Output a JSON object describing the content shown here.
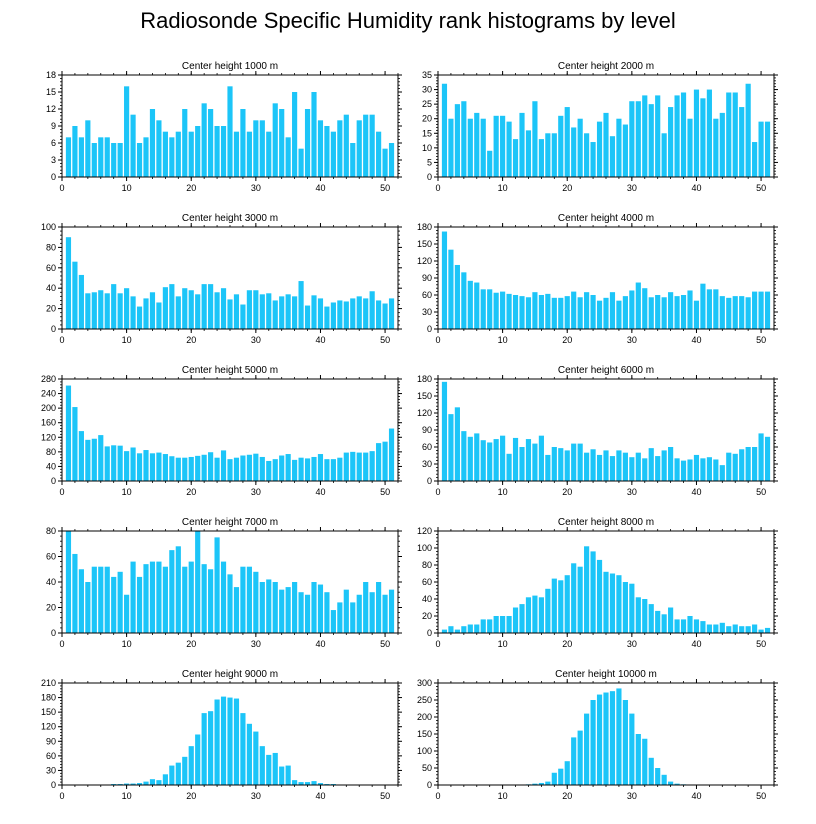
{
  "title": "Radiosonde Specific Humidity rank histograms by level",
  "colors": {
    "bar": "#1cc5f8",
    "axis": "#000000"
  },
  "chart_data": [
    {
      "type": "bar",
      "title": "Center height 1000 m",
      "xlim": [
        0,
        52
      ],
      "xticks": [
        0,
        10,
        20,
        30,
        40,
        50
      ],
      "ylim": [
        0,
        18
      ],
      "yticks": [
        0,
        3,
        6,
        9,
        12,
        15,
        18
      ],
      "x": [
        1,
        2,
        3,
        4,
        5,
        6,
        7,
        8,
        9,
        10,
        11,
        12,
        13,
        14,
        15,
        16,
        17,
        18,
        19,
        20,
        21,
        22,
        23,
        24,
        25,
        26,
        27,
        28,
        29,
        30,
        31,
        32,
        33,
        34,
        35,
        36,
        37,
        38,
        39,
        40,
        41,
        42,
        43,
        44,
        45,
        46,
        47,
        48,
        49,
        50,
        51
      ],
      "values": [
        7,
        9,
        7,
        10,
        6,
        7,
        7,
        6,
        6,
        16,
        11,
        6,
        7,
        12,
        10,
        8,
        7,
        8,
        12,
        8,
        9,
        13,
        12,
        9,
        9,
        16,
        8,
        12,
        8,
        10,
        10,
        8,
        13,
        12,
        7,
        15,
        5,
        12,
        15,
        10,
        9,
        8,
        10,
        11,
        6,
        10,
        11,
        11,
        8,
        5,
        6
      ]
    },
    {
      "type": "bar",
      "title": "Center height 2000 m",
      "xlim": [
        0,
        52
      ],
      "xticks": [
        0,
        10,
        20,
        30,
        40,
        50
      ],
      "ylim": [
        0,
        35
      ],
      "yticks": [
        0,
        5,
        10,
        15,
        20,
        25,
        30,
        35
      ],
      "x": [
        1,
        2,
        3,
        4,
        5,
        6,
        7,
        8,
        9,
        10,
        11,
        12,
        13,
        14,
        15,
        16,
        17,
        18,
        19,
        20,
        21,
        22,
        23,
        24,
        25,
        26,
        27,
        28,
        29,
        30,
        31,
        32,
        33,
        34,
        35,
        36,
        37,
        38,
        39,
        40,
        41,
        42,
        43,
        44,
        45,
        46,
        47,
        48,
        49,
        50,
        51
      ],
      "values": [
        32,
        20,
        25,
        26,
        20,
        22,
        20,
        9,
        21,
        21,
        19,
        13,
        22,
        16,
        26,
        13,
        15,
        15,
        21,
        24,
        17,
        20,
        15,
        12,
        19,
        22,
        14,
        20,
        18,
        26,
        26,
        28,
        25,
        28,
        15,
        24,
        28,
        29,
        20,
        30,
        27,
        30,
        20,
        22,
        29,
        29,
        24,
        32,
        12,
        19,
        19
      ]
    },
    {
      "type": "bar",
      "title": "Center height 3000 m",
      "xlim": [
        0,
        52
      ],
      "xticks": [
        0,
        10,
        20,
        30,
        40,
        50
      ],
      "ylim": [
        0,
        100
      ],
      "yticks": [
        0,
        20,
        40,
        60,
        80,
        100
      ],
      "x": [
        1,
        2,
        3,
        4,
        5,
        6,
        7,
        8,
        9,
        10,
        11,
        12,
        13,
        14,
        15,
        16,
        17,
        18,
        19,
        20,
        21,
        22,
        23,
        24,
        25,
        26,
        27,
        28,
        29,
        30,
        31,
        32,
        33,
        34,
        35,
        36,
        37,
        38,
        39,
        40,
        41,
        42,
        43,
        44,
        45,
        46,
        47,
        48,
        49,
        50,
        51
      ],
      "values": [
        90,
        66,
        53,
        35,
        36,
        38,
        35,
        44,
        35,
        40,
        32,
        22,
        30,
        36,
        26,
        41,
        44,
        32,
        40,
        38,
        34,
        44,
        44,
        36,
        40,
        29,
        34,
        24,
        38,
        38,
        34,
        35,
        28,
        32,
        34,
        32,
        47,
        23,
        33,
        30,
        22,
        26,
        28,
        27,
        30,
        32,
        30,
        37,
        28,
        25,
        30
      ]
    },
    {
      "type": "bar",
      "title": "Center height 4000 m",
      "xlim": [
        0,
        52
      ],
      "xticks": [
        0,
        10,
        20,
        30,
        40,
        50
      ],
      "ylim": [
        0,
        180
      ],
      "yticks": [
        0,
        30,
        60,
        90,
        120,
        150,
        180
      ],
      "x": [
        1,
        2,
        3,
        4,
        5,
        6,
        7,
        8,
        9,
        10,
        11,
        12,
        13,
        14,
        15,
        16,
        17,
        18,
        19,
        20,
        21,
        22,
        23,
        24,
        25,
        26,
        27,
        28,
        29,
        30,
        31,
        32,
        33,
        34,
        35,
        36,
        37,
        38,
        39,
        40,
        41,
        42,
        43,
        44,
        45,
        46,
        47,
        48,
        49,
        50,
        51
      ],
      "values": [
        172,
        140,
        113,
        100,
        85,
        82,
        70,
        70,
        64,
        66,
        62,
        60,
        58,
        56,
        65,
        60,
        62,
        55,
        55,
        58,
        66,
        56,
        65,
        60,
        50,
        55,
        65,
        50,
        58,
        68,
        82,
        72,
        56,
        60,
        56,
        65,
        58,
        60,
        68,
        50,
        80,
        70,
        70,
        58,
        55,
        58,
        58,
        56,
        66,
        66,
        66
      ]
    },
    {
      "type": "bar",
      "title": "Center height 5000 m",
      "xlim": [
        0,
        52
      ],
      "xticks": [
        0,
        10,
        20,
        30,
        40,
        50
      ],
      "ylim": [
        0,
        280
      ],
      "yticks": [
        0,
        40,
        80,
        120,
        160,
        200,
        240,
        280
      ],
      "x": [
        1,
        2,
        3,
        4,
        5,
        6,
        7,
        8,
        9,
        10,
        11,
        12,
        13,
        14,
        15,
        16,
        17,
        18,
        19,
        20,
        21,
        22,
        23,
        24,
        25,
        26,
        27,
        28,
        29,
        30,
        31,
        32,
        33,
        34,
        35,
        36,
        37,
        38,
        39,
        40,
        41,
        42,
        43,
        44,
        45,
        46,
        47,
        48,
        49,
        50,
        51
      ],
      "values": [
        262,
        203,
        137,
        113,
        116,
        126,
        95,
        98,
        97,
        82,
        92,
        76,
        85,
        76,
        78,
        74,
        68,
        64,
        64,
        66,
        69,
        72,
        79,
        64,
        84,
        60,
        64,
        70,
        72,
        75,
        66,
        55,
        60,
        70,
        74,
        58,
        64,
        62,
        66,
        74,
        60,
        60,
        64,
        78,
        80,
        78,
        78,
        82,
        104,
        108,
        144
      ]
    },
    {
      "type": "bar",
      "title": "Center height 6000 m",
      "xlim": [
        0,
        52
      ],
      "xticks": [
        0,
        10,
        20,
        30,
        40,
        50
      ],
      "ylim": [
        0,
        180
      ],
      "yticks": [
        0,
        30,
        60,
        90,
        120,
        150,
        180
      ],
      "x": [
        1,
        2,
        3,
        4,
        5,
        6,
        7,
        8,
        9,
        10,
        11,
        12,
        13,
        14,
        15,
        16,
        17,
        18,
        19,
        20,
        21,
        22,
        23,
        24,
        25,
        26,
        27,
        28,
        29,
        30,
        31,
        32,
        33,
        34,
        35,
        36,
        37,
        38,
        39,
        40,
        41,
        42,
        43,
        44,
        45,
        46,
        47,
        48,
        49,
        50,
        51
      ],
      "values": [
        175,
        118,
        130,
        88,
        78,
        84,
        72,
        68,
        74,
        80,
        48,
        76,
        60,
        74,
        66,
        80,
        46,
        60,
        58,
        54,
        66,
        66,
        50,
        56,
        46,
        54,
        44,
        54,
        50,
        42,
        50,
        40,
        58,
        44,
        54,
        60,
        40,
        36,
        38,
        46,
        40,
        42,
        38,
        28,
        50,
        48,
        56,
        60,
        60,
        84,
        78
      ]
    },
    {
      "type": "bar",
      "title": "Center height 7000 m",
      "xlim": [
        0,
        52
      ],
      "xticks": [
        0,
        10,
        20,
        30,
        40,
        50
      ],
      "ylim": [
        0,
        80
      ],
      "yticks": [
        0,
        20,
        40,
        60,
        80
      ],
      "x": [
        1,
        2,
        3,
        4,
        5,
        6,
        7,
        8,
        9,
        10,
        11,
        12,
        13,
        14,
        15,
        16,
        17,
        18,
        19,
        20,
        21,
        22,
        23,
        24,
        25,
        26,
        27,
        28,
        29,
        30,
        31,
        32,
        33,
        34,
        35,
        36,
        37,
        38,
        39,
        40,
        41,
        42,
        43,
        44,
        45,
        46,
        47,
        48,
        49,
        50,
        51
      ],
      "values": [
        80,
        62,
        50,
        40,
        52,
        52,
        52,
        44,
        48,
        30,
        56,
        44,
        54,
        56,
        56,
        52,
        65,
        68,
        52,
        56,
        80,
        54,
        50,
        75,
        56,
        46,
        36,
        52,
        52,
        48,
        40,
        42,
        40,
        34,
        36,
        40,
        32,
        30,
        40,
        38,
        32,
        18,
        24,
        34,
        24,
        30,
        40,
        32,
        40,
        30,
        34
      ]
    },
    {
      "type": "bar",
      "title": "Center height 8000 m",
      "xlim": [
        0,
        52
      ],
      "xticks": [
        0,
        10,
        20,
        30,
        40,
        50
      ],
      "ylim": [
        0,
        120
      ],
      "yticks": [
        0,
        20,
        40,
        60,
        80,
        100,
        120
      ],
      "x": [
        1,
        2,
        3,
        4,
        5,
        6,
        7,
        8,
        9,
        10,
        11,
        12,
        13,
        14,
        15,
        16,
        17,
        18,
        19,
        20,
        21,
        22,
        23,
        24,
        25,
        26,
        27,
        28,
        29,
        30,
        31,
        32,
        33,
        34,
        35,
        36,
        37,
        38,
        39,
        40,
        41,
        42,
        43,
        44,
        45,
        46,
        47,
        48,
        49,
        50,
        51
      ],
      "values": [
        4,
        8,
        4,
        8,
        10,
        10,
        16,
        16,
        20,
        20,
        20,
        30,
        34,
        42,
        44,
        42,
        52,
        64,
        62,
        68,
        82,
        78,
        102,
        96,
        86,
        72,
        70,
        68,
        60,
        58,
        42,
        40,
        34,
        26,
        22,
        30,
        16,
        16,
        20,
        16,
        14,
        10,
        10,
        12,
        8,
        10,
        8,
        8,
        10,
        4,
        6
      ]
    },
    {
      "type": "bar",
      "title": "Center height 9000 m",
      "xlim": [
        0,
        52
      ],
      "xticks": [
        0,
        10,
        20,
        30,
        40,
        50
      ],
      "ylim": [
        0,
        210
      ],
      "yticks": [
        0,
        30,
        60,
        90,
        120,
        150,
        180,
        210
      ],
      "x": [
        1,
        2,
        3,
        4,
        5,
        6,
        7,
        8,
        9,
        10,
        11,
        12,
        13,
        14,
        15,
        16,
        17,
        18,
        19,
        20,
        21,
        22,
        23,
        24,
        25,
        26,
        27,
        28,
        29,
        30,
        31,
        32,
        33,
        34,
        35,
        36,
        37,
        38,
        39,
        40,
        41,
        42,
        43,
        44,
        45,
        46,
        47,
        48,
        49,
        50,
        51
      ],
      "values": [
        0,
        0,
        0,
        0,
        0,
        1,
        1,
        2,
        2,
        3,
        3,
        4,
        7,
        12,
        10,
        22,
        40,
        46,
        58,
        80,
        104,
        148,
        152,
        176,
        182,
        180,
        178,
        148,
        126,
        110,
        80,
        62,
        66,
        38,
        40,
        10,
        6,
        6,
        8,
        4,
        2,
        2,
        1,
        1,
        0,
        0,
        0,
        0,
        0,
        0,
        0
      ]
    },
    {
      "type": "bar",
      "title": "Center height 10000 m",
      "xlim": [
        0,
        52
      ],
      "xticks": [
        0,
        10,
        20,
        30,
        40,
        50
      ],
      "ylim": [
        0,
        300
      ],
      "yticks": [
        0,
        50,
        100,
        150,
        200,
        250,
        300
      ],
      "x": [
        1,
        2,
        3,
        4,
        5,
        6,
        7,
        8,
        9,
        10,
        11,
        12,
        13,
        14,
        15,
        16,
        17,
        18,
        19,
        20,
        21,
        22,
        23,
        24,
        25,
        26,
        27,
        28,
        29,
        30,
        31,
        32,
        33,
        34,
        35,
        36,
        37,
        38,
        39,
        40,
        41,
        42,
        43,
        44,
        45,
        46,
        47,
        48,
        49,
        50,
        51
      ],
      "values": [
        0,
        0,
        0,
        0,
        0,
        0,
        0,
        0,
        0,
        0,
        0,
        1,
        1,
        2,
        4,
        6,
        10,
        36,
        48,
        70,
        140,
        160,
        210,
        250,
        266,
        272,
        276,
        284,
        250,
        210,
        150,
        136,
        80,
        50,
        30,
        10,
        4,
        2,
        1,
        1,
        0,
        0,
        0,
        0,
        0,
        0,
        0,
        0,
        0,
        0,
        0
      ]
    }
  ]
}
